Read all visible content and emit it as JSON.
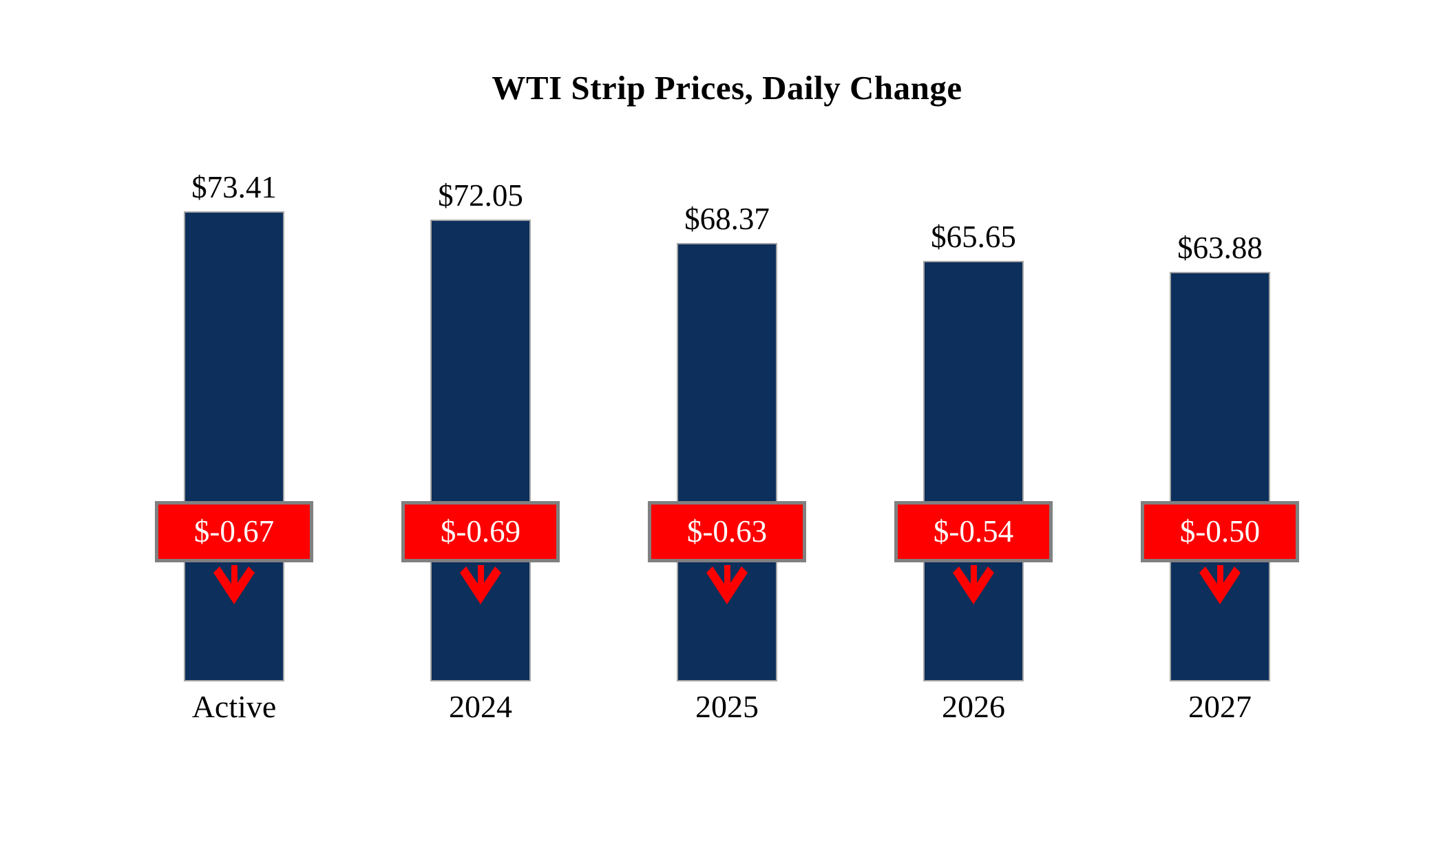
{
  "chart_data": {
    "type": "bar",
    "title": "WTI Strip Prices, Daily Change",
    "categories": [
      "Active",
      "2024",
      "2025",
      "2026",
      "2027"
    ],
    "series": [
      {
        "name": "Strip Price",
        "values": [
          73.41,
          72.05,
          68.37,
          65.65,
          63.88
        ],
        "labels": [
          "$73.41",
          "$72.05",
          "$68.37",
          "$65.65",
          "$63.88"
        ]
      },
      {
        "name": "Daily Change",
        "values": [
          -0.67,
          -0.69,
          -0.63,
          -0.54,
          -0.5
        ],
        "labels": [
          "$-0.67",
          "$-0.69",
          "$-0.63",
          "$-0.54",
          "$-0.50"
        ]
      }
    ],
    "ylim": [
      0,
      87
    ],
    "grid": false,
    "legend": false,
    "axis_lines": false,
    "change_indicator_icon": "down-arrow",
    "colors": {
      "background": "#FFFFFF",
      "text": "#000000",
      "bar": "#0D2F5B",
      "bar_border": "#A6A6A6",
      "box": "#FF0000",
      "box_border": "#808080",
      "box_text": "#FFFFFF",
      "arrow": "#FF0000"
    }
  }
}
